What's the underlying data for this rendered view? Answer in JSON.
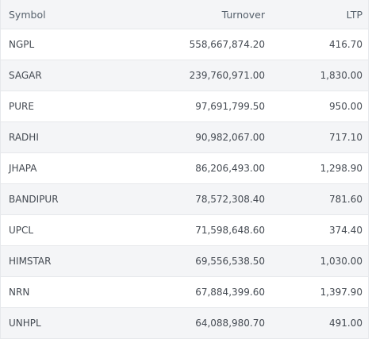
{
  "table": {
    "headers": {
      "symbol": "Symbol",
      "turnover": "Turnover",
      "ltp": "LTP"
    },
    "rows": [
      {
        "symbol": "NGPL",
        "turnover": "558,667,874.20",
        "ltp": "416.70"
      },
      {
        "symbol": "SAGAR",
        "turnover": "239,760,971.00",
        "ltp": "1,830.00"
      },
      {
        "symbol": "PURE",
        "turnover": "97,691,799.50",
        "ltp": "950.00"
      },
      {
        "symbol": "RADHI",
        "turnover": "90,982,067.00",
        "ltp": "717.10"
      },
      {
        "symbol": "JHAPA",
        "turnover": "86,206,493.00",
        "ltp": "1,298.90"
      },
      {
        "symbol": "BANDIPUR",
        "turnover": "78,572,308.40",
        "ltp": "781.60"
      },
      {
        "symbol": "UPCL",
        "turnover": "71,598,648.60",
        "ltp": "374.40"
      },
      {
        "symbol": "HIMSTAR",
        "turnover": "69,556,538.50",
        "ltp": "1,030.00"
      },
      {
        "symbol": "NRN",
        "turnover": "67,884,399.60",
        "ltp": "1,397.90"
      },
      {
        "symbol": "UNHPL",
        "turnover": "64,088,980.70",
        "ltp": "491.00"
      }
    ]
  }
}
